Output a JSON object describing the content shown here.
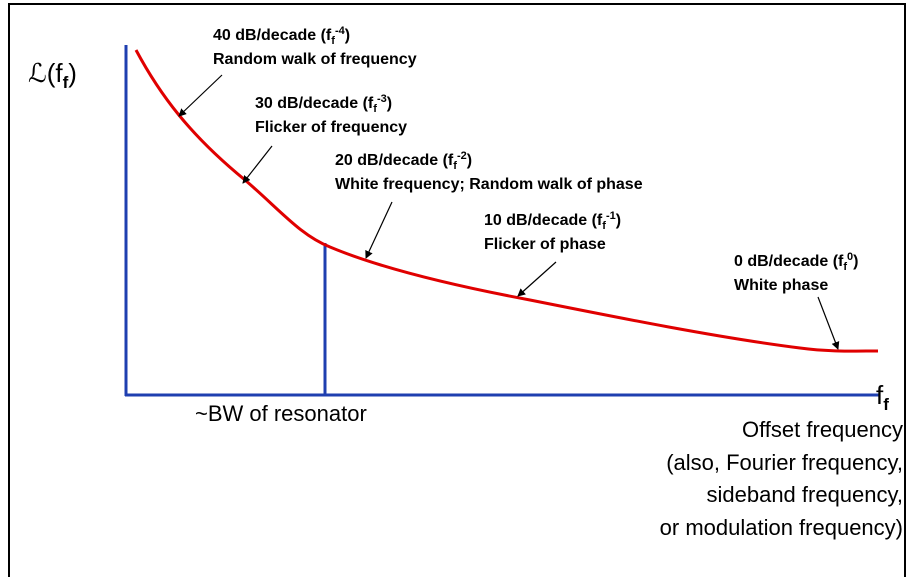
{
  "y_label": {
    "main": "ℒ(f",
    "sub": "f",
    "close": ")"
  },
  "x_label": {
    "main": "f",
    "sub": "f"
  },
  "annotations": [
    {
      "rate": "40 dB/decade (f",
      "sub": "f",
      "sup": "-4",
      "close": ")",
      "description": "Random walk of frequency"
    },
    {
      "rate": "30 dB/decade (f",
      "sub": "f",
      "sup": "-3",
      "close": ")",
      "description": "Flicker of frequency"
    },
    {
      "rate": "20 dB/decade (f",
      "sub": "f",
      "sup": "-2",
      "close": ")",
      "description": "White frequency; Random walk of phase"
    },
    {
      "rate": "10 dB/decade (f",
      "sub": "f",
      "sup": "-1",
      "close": ")",
      "description": "Flicker of phase"
    },
    {
      "rate": "0 dB/decade (f",
      "sub": "f",
      "sup": "0",
      "close": ")",
      "description": "White phase"
    }
  ],
  "bandwidth_label": "~BW of resonator",
  "x_description": [
    "Offset frequency",
    "(also, Fourier frequency,",
    "sideband frequency,",
    "or modulation frequency)"
  ]
}
